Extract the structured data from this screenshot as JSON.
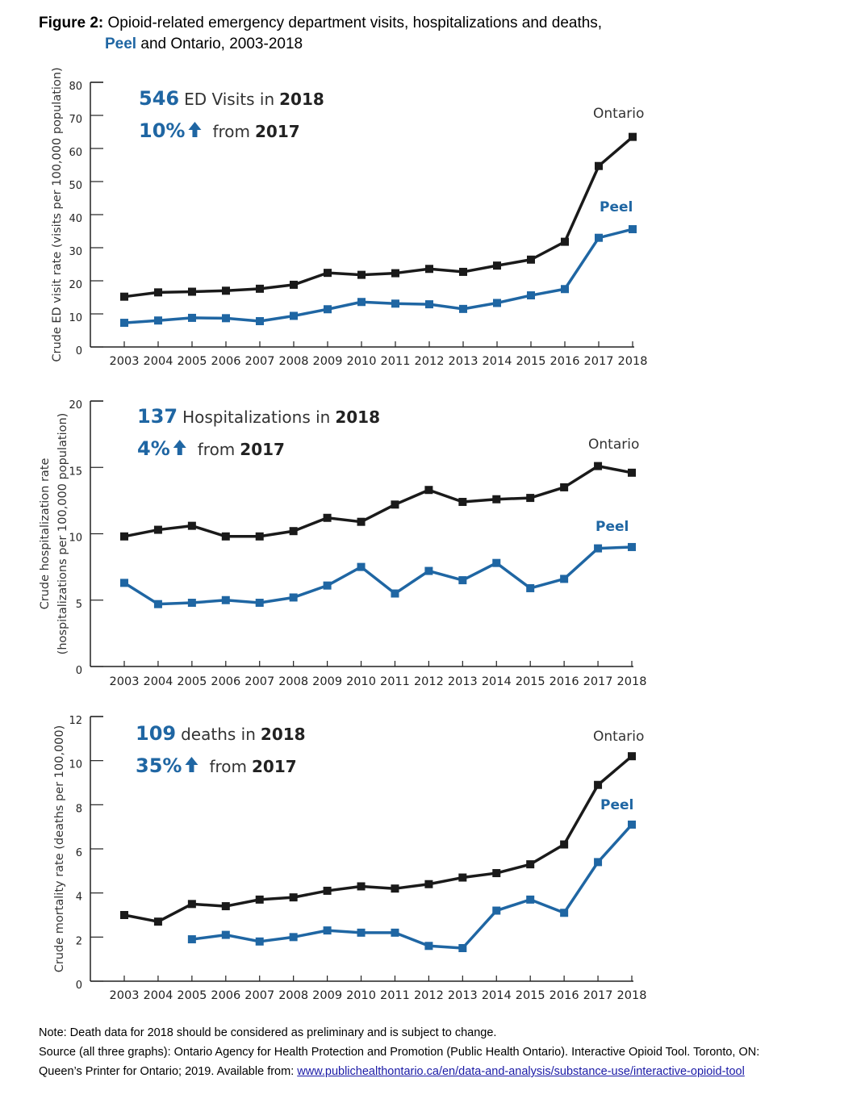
{
  "figure": {
    "title_bold": "Figure 2:",
    "title_line1": "Opioid-related emergency department visits, hospitalizations and deaths,",
    "title_line2_peel": "Peel",
    "title_line2_rest": "and Ontario, 2003-2018"
  },
  "chart_data": [
    {
      "type": "line",
      "ylabel": "Crude ED visit rate (visits per 100,000 population)",
      "ylim": [
        0,
        80
      ],
      "yticks": [
        0,
        10,
        20,
        30,
        40,
        50,
        60,
        70,
        80
      ],
      "categories": [
        "2003",
        "2004",
        "2005",
        "2006",
        "2007",
        "2008",
        "2009",
        "2010",
        "2011",
        "2012",
        "2013",
        "2014",
        "2015",
        "2016",
        "2017",
        "2018"
      ],
      "series": [
        {
          "name": "Ontario",
          "color": "#1a1a1a",
          "values": [
            15.2,
            16.5,
            16.7,
            17.0,
            17.6,
            18.8,
            22.4,
            21.8,
            22.3,
            23.6,
            22.7,
            24.6,
            26.4,
            31.8,
            54.7,
            63.5
          ]
        },
        {
          "name": "Peel",
          "color": "#1f66a3",
          "values": [
            7.3,
            8.0,
            8.8,
            8.7,
            7.8,
            9.4,
            11.4,
            13.6,
            13.1,
            12.9,
            11.5,
            13.3,
            15.6,
            17.5,
            33.0,
            35.6
          ]
        }
      ],
      "annotation": {
        "count": "546",
        "count_text": "ED Visits in",
        "year": "2018",
        "pct": "10%",
        "from_text": "from",
        "from_year": "2017"
      }
    },
    {
      "type": "line",
      "ylabel_line1": "Crude hospitalization rate",
      "ylabel_line2": "(hospitalizations per 100,000 population)",
      "ylim": [
        0,
        20
      ],
      "yticks": [
        0,
        5,
        10,
        15,
        20
      ],
      "categories": [
        "2003",
        "2004",
        "2005",
        "2006",
        "2007",
        "2008",
        "2009",
        "2010",
        "2011",
        "2012",
        "2013",
        "2014",
        "2015",
        "2016",
        "2017",
        "2018"
      ],
      "series": [
        {
          "name": "Ontario",
          "color": "#1a1a1a",
          "values": [
            9.8,
            10.3,
            10.6,
            9.8,
            9.8,
            10.2,
            11.2,
            10.9,
            12.2,
            13.3,
            12.4,
            12.6,
            12.7,
            13.5,
            15.1,
            14.6
          ]
        },
        {
          "name": "Peel",
          "color": "#1f66a3",
          "values": [
            6.3,
            4.7,
            4.8,
            5.0,
            4.8,
            5.2,
            6.1,
            7.5,
            5.5,
            7.2,
            6.5,
            7.8,
            5.9,
            6.6,
            8.9,
            9.0
          ]
        }
      ],
      "annotation": {
        "count": "137",
        "count_text": "Hospitalizations in",
        "year": "2018",
        "pct": "4%",
        "from_text": "from",
        "from_year": "2017"
      }
    },
    {
      "type": "line",
      "ylabel": "Crude mortality rate (deaths per 100,000)",
      "ylim": [
        0,
        12
      ],
      "yticks": [
        0,
        2,
        4,
        6,
        8,
        10,
        12
      ],
      "categories": [
        "2003",
        "2004",
        "2005",
        "2006",
        "2007",
        "2008",
        "2009",
        "2010",
        "2011",
        "2012",
        "2013",
        "2014",
        "2015",
        "2016",
        "2017",
        "2018"
      ],
      "series": [
        {
          "name": "Ontario",
          "color": "#1a1a1a",
          "values": [
            3.0,
            2.7,
            3.5,
            3.4,
            3.7,
            3.8,
            4.1,
            4.3,
            4.2,
            4.4,
            4.7,
            4.9,
            5.3,
            6.2,
            8.9,
            10.2
          ]
        },
        {
          "name": "Peel",
          "color": "#1f66a3",
          "values": [
            null,
            null,
            1.9,
            2.1,
            1.8,
            2.0,
            2.3,
            2.2,
            2.2,
            1.6,
            1.5,
            3.2,
            3.7,
            3.1,
            5.4,
            7.1
          ]
        }
      ],
      "annotation": {
        "count": "109",
        "count_text": "deaths in",
        "year": "2018",
        "pct": "35%",
        "from_text": "from",
        "from_year": "2017"
      }
    }
  ],
  "notes": {
    "note": "Note: Death data for 2018 should be considered as preliminary and is subject to change.",
    "source": "Source (all three graphs): Ontario Agency for Health Protection and Promotion (Public Health Ontario). Interactive Opioid Tool. Toronto, ON:",
    "source_line2": "Queen’s Printer for Ontario; 2019. Available from:",
    "link_text": "www.publichealthontario.ca/en/data-and-analysis/substance-use/interactive-opioid-tool"
  }
}
